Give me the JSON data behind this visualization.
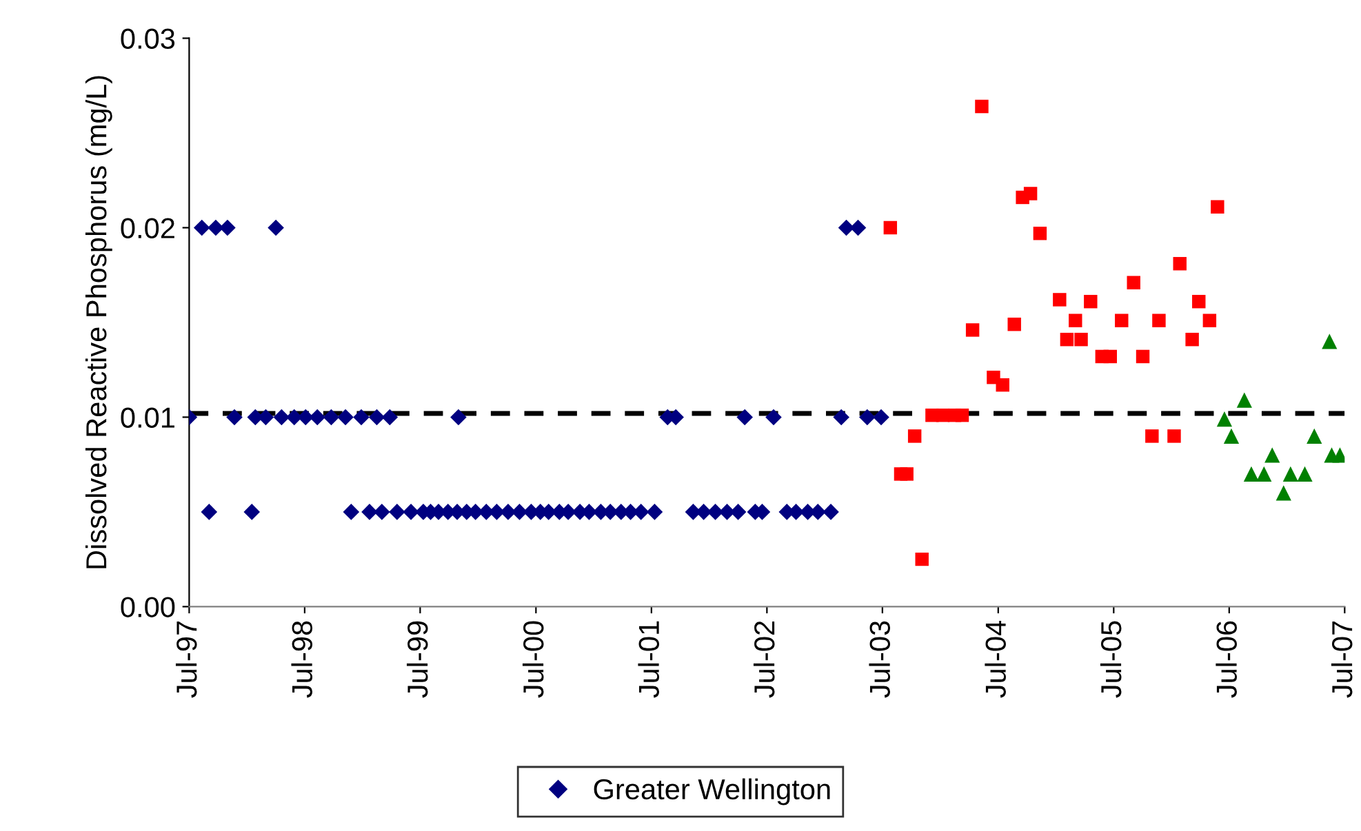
{
  "chart_data": {
    "type": "scatter",
    "ylabel": "Dissolved Reactive Phosphorus (mg/L)",
    "xlim": [
      "1997-07-01",
      "2007-07-01"
    ],
    "xticks": [
      {
        "value": "1997-07-01",
        "label": "Jul-97"
      },
      {
        "value": "1998-07-01",
        "label": "Jul-98"
      },
      {
        "value": "1999-07-01",
        "label": "Jul-99"
      },
      {
        "value": "2000-07-01",
        "label": "Jul-00"
      },
      {
        "value": "2001-07-01",
        "label": "Jul-01"
      },
      {
        "value": "2002-07-01",
        "label": "Jul-02"
      },
      {
        "value": "2003-07-01",
        "label": "Jul-03"
      },
      {
        "value": "2004-07-01",
        "label": "Jul-04"
      },
      {
        "value": "2005-07-01",
        "label": "Jul-05"
      },
      {
        "value": "2006-07-01",
        "label": "Jul-06"
      },
      {
        "value": "2007-07-01",
        "label": "Jul-07"
      }
    ],
    "ylim": [
      0,
      0.03
    ],
    "yticks": [
      {
        "value": 0,
        "label": "0.00"
      },
      {
        "value": 0.01,
        "label": "0.01"
      },
      {
        "value": 0.02,
        "label": "0.02"
      },
      {
        "value": 0.03,
        "label": "0.03"
      }
    ],
    "legend": "bottom",
    "grid": false,
    "ref_lines": [
      {
        "axis": "y",
        "value": 0.0102,
        "color": "#000000",
        "line_style": "dashed"
      }
    ],
    "series": [
      {
        "name": "Greater Wellington",
        "color": "#000080",
        "marker": "diamond",
        "x": [
          "1997-08-10",
          "1997-09-23",
          "1997-10-30",
          "1998-04-01",
          "2003-03-09",
          "2003-04-15",
          "1997-07-01",
          "1997-11-21",
          "1998-01-26",
          "1998-02-28",
          "1998-04-19",
          "1998-05-29",
          "1998-07-04",
          "1998-08-10",
          "1998-09-23",
          "1998-11-07",
          "1998-12-27",
          "1999-02-14",
          "1999-03-27",
          "1999-10-30",
          "2001-08-21",
          "2001-09-16",
          "2002-04-22",
          "2002-07-22",
          "2003-02-21",
          "2003-05-14",
          "2003-06-27",
          "1997-09-02",
          "1998-01-15",
          "1998-11-25",
          "1999-01-22",
          "1999-03-02",
          "1999-04-19",
          "1999-06-02",
          "1999-07-11",
          "1999-08-03",
          "1999-08-28",
          "1999-09-27",
          "1999-10-26",
          "1999-11-25",
          "1999-12-23",
          "2000-01-26",
          "2000-02-28",
          "2000-04-04",
          "2000-05-10",
          "2000-06-16",
          "2000-07-15",
          "2000-08-10",
          "2000-09-13",
          "2000-10-11",
          "2000-11-17",
          "2000-12-16",
          "2001-01-22",
          "2001-02-21",
          "2001-03-27",
          "2001-04-26",
          "2001-05-29",
          "2001-07-11",
          "2001-11-10",
          "2001-12-13",
          "2002-01-19",
          "2002-02-25",
          "2002-04-01",
          "2002-05-25",
          "2002-06-16",
          "2002-09-02",
          "2002-10-01",
          "2002-11-07",
          "2002-12-09",
          "2003-01-19"
        ],
        "values": [
          0.02,
          0.02,
          0.02,
          0.02,
          0.02,
          0.02,
          0.01,
          0.01,
          0.01,
          0.01,
          0.01,
          0.01,
          0.01,
          0.01,
          0.01,
          0.01,
          0.01,
          0.01,
          0.01,
          0.01,
          0.01,
          0.01,
          0.01,
          0.01,
          0.01,
          0.01,
          0.01,
          0.005,
          0.005,
          0.005,
          0.005,
          0.005,
          0.005,
          0.005,
          0.005,
          0.005,
          0.005,
          0.005,
          0.005,
          0.005,
          0.005,
          0.005,
          0.005,
          0.005,
          0.005,
          0.005,
          0.005,
          0.005,
          0.005,
          0.005,
          0.005,
          0.005,
          0.005,
          0.005,
          0.005,
          0.005,
          0.005,
          0.005,
          0.005,
          0.005,
          0.005,
          0.005,
          0.005,
          0.005,
          0.005,
          0.005,
          0.005,
          0.005,
          0.005,
          0.005
        ]
      },
      {
        "color": "#ff0000",
        "marker": "square",
        "x": [
          "2003-07-26",
          "2004-05-10",
          "2004-09-16",
          "2004-10-11",
          "2004-11-10",
          "2006-05-25",
          "2006-01-26",
          "2005-09-02",
          "2005-01-11",
          "2005-04-19",
          "2006-03-27",
          "2005-03-02",
          "2005-07-26",
          "2005-11-21",
          "2006-04-30",
          "2004-04-11",
          "2004-08-21",
          "2005-02-03",
          "2005-03-20",
          "2006-03-06",
          "2005-05-25",
          "2005-06-20",
          "2005-10-01",
          "2004-06-16",
          "2004-07-15",
          "2003-12-05",
          "2004-01-08",
          "2004-02-14",
          "2004-03-09",
          "2003-10-11",
          "2005-10-30",
          "2006-01-08",
          "2003-08-28",
          "2003-09-16",
          "2003-11-03"
        ],
        "values": [
          0.02,
          0.0264,
          0.0216,
          0.0218,
          0.0197,
          0.0211,
          0.0181,
          0.0171,
          0.0162,
          0.0161,
          0.0161,
          0.0151,
          0.0151,
          0.0151,
          0.0151,
          0.0146,
          0.0149,
          0.0141,
          0.0141,
          0.0141,
          0.0132,
          0.0132,
          0.0132,
          0.0121,
          0.0117,
          0.0101,
          0.0101,
          0.0101,
          0.0101,
          0.009,
          0.009,
          0.009,
          0.007,
          0.007,
          0.0025
        ]
      },
      {
        "color": "#008000",
        "marker": "triangle",
        "x": [
          "2007-05-14",
          "2006-08-18",
          "2006-06-16",
          "2006-07-08",
          "2007-03-27",
          "2006-11-14",
          "2007-05-21",
          "2007-06-16",
          "2006-09-09",
          "2006-10-19",
          "2007-01-11",
          "2007-02-25",
          "2006-12-20"
        ],
        "values": [
          0.014,
          0.0109,
          0.0099,
          0.009,
          0.009,
          0.008,
          0.008,
          0.008,
          0.007,
          0.007,
          0.007,
          0.007,
          0.006
        ]
      }
    ]
  }
}
